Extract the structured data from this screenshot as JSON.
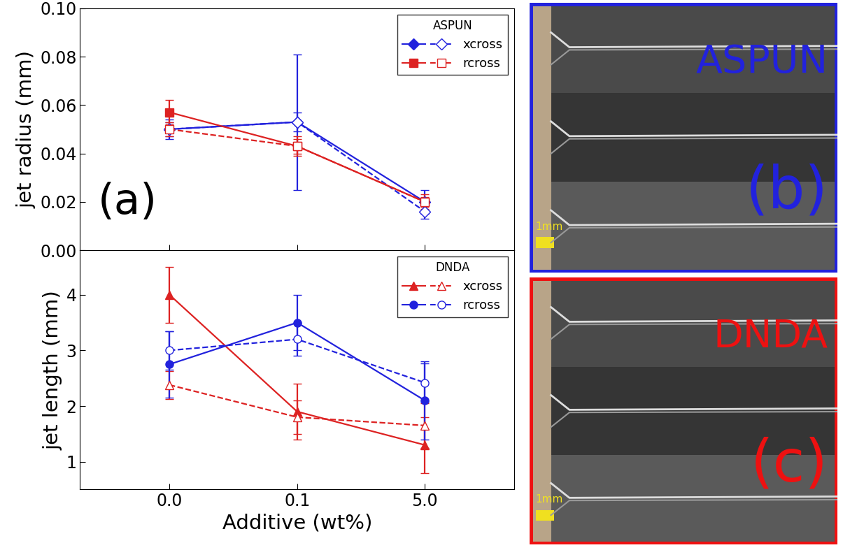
{
  "chart_data": [
    {
      "type": "line",
      "ylabel": "jet radius (mm)",
      "annotation": "(a)",
      "categories": [
        "0.0",
        "0.1",
        "5.0"
      ],
      "tick_labels": "y",
      "ylim": [
        0,
        0.1
      ],
      "yticks": [
        {
          "value": 0,
          "label": "0.00"
        },
        {
          "value": 0.02,
          "label": "0.02"
        },
        {
          "value": 0.04,
          "label": "0.04"
        },
        {
          "value": 0.06,
          "label": "0.06"
        },
        {
          "value": 0.08,
          "label": "0.08"
        },
        {
          "value": 0.1,
          "label": "0.10"
        }
      ],
      "legend": "upper right",
      "legend_title": "ASPUN",
      "series": [
        {
          "name": "xcross",
          "color": "#2222dd",
          "marker": "diamond",
          "line_style": "solid",
          "values": [
            0.05,
            0.053,
            0.02
          ],
          "errors": [
            0.004,
            0.028,
            0.005
          ]
        },
        {
          "name": "xcross",
          "color": "#2222dd",
          "marker": "diamond",
          "line_style": "dashed",
          "values": [
            0.05,
            0.053,
            0.016
          ],
          "errors": [
            0.003,
            0.004,
            0.003
          ]
        },
        {
          "name": "rcross",
          "color": "#dd2222",
          "marker": "square",
          "line_style": "solid",
          "values": [
            0.057,
            0.043,
            0.02
          ],
          "errors": [
            0.005,
            0.004,
            0.003
          ]
        },
        {
          "name": "rcross",
          "color": "#dd2222",
          "marker": "square",
          "line_style": "dashed",
          "values": [
            0.05,
            0.043,
            0.02
          ],
          "errors": [
            0.003,
            0.003,
            0.002
          ]
        }
      ]
    },
    {
      "type": "line",
      "ylabel": "jet length (mm)",
      "xlabel": "Additive (wt%)",
      "categories": [
        "0.0",
        "0.1",
        "5.0"
      ],
      "ylim": [
        0.5,
        4.8
      ],
      "yticks": [
        1,
        2,
        3,
        4
      ],
      "legend": "upper right",
      "legend_title": "DNDA",
      "series": [
        {
          "name": "xcross",
          "color": "#dd2222",
          "marker": "triangle",
          "line_style": "solid",
          "values": [
            4.0,
            1.9,
            1.3
          ],
          "errors": [
            0.5,
            0.5,
            0.5
          ]
        },
        {
          "name": "xcross",
          "color": "#dd2222",
          "marker": "triangle",
          "line_style": "dashed",
          "values": [
            2.38,
            1.8,
            1.65
          ],
          "errors": [
            0.25,
            0.3,
            0.4
          ]
        },
        {
          "name": "rcross",
          "color": "#2222dd",
          "marker": "circle",
          "line_style": "solid",
          "values": [
            2.75,
            3.5,
            2.1
          ],
          "errors": [
            0.6,
            0.5,
            0.7
          ]
        },
        {
          "name": "rcross",
          "color": "#2222dd",
          "marker": "circle",
          "line_style": "dashed",
          "values": [
            3.0,
            3.2,
            2.42
          ],
          "errors": [
            0.35,
            0.3,
            0.35
          ]
        }
      ]
    }
  ],
  "images": [
    {
      "label": "ASPUN",
      "panel": "(b)",
      "scale": "1mm",
      "color": "#2222dd"
    },
    {
      "label": "DNDA",
      "panel": "(c)",
      "scale": "1mm",
      "color": "#ee1111"
    }
  ]
}
